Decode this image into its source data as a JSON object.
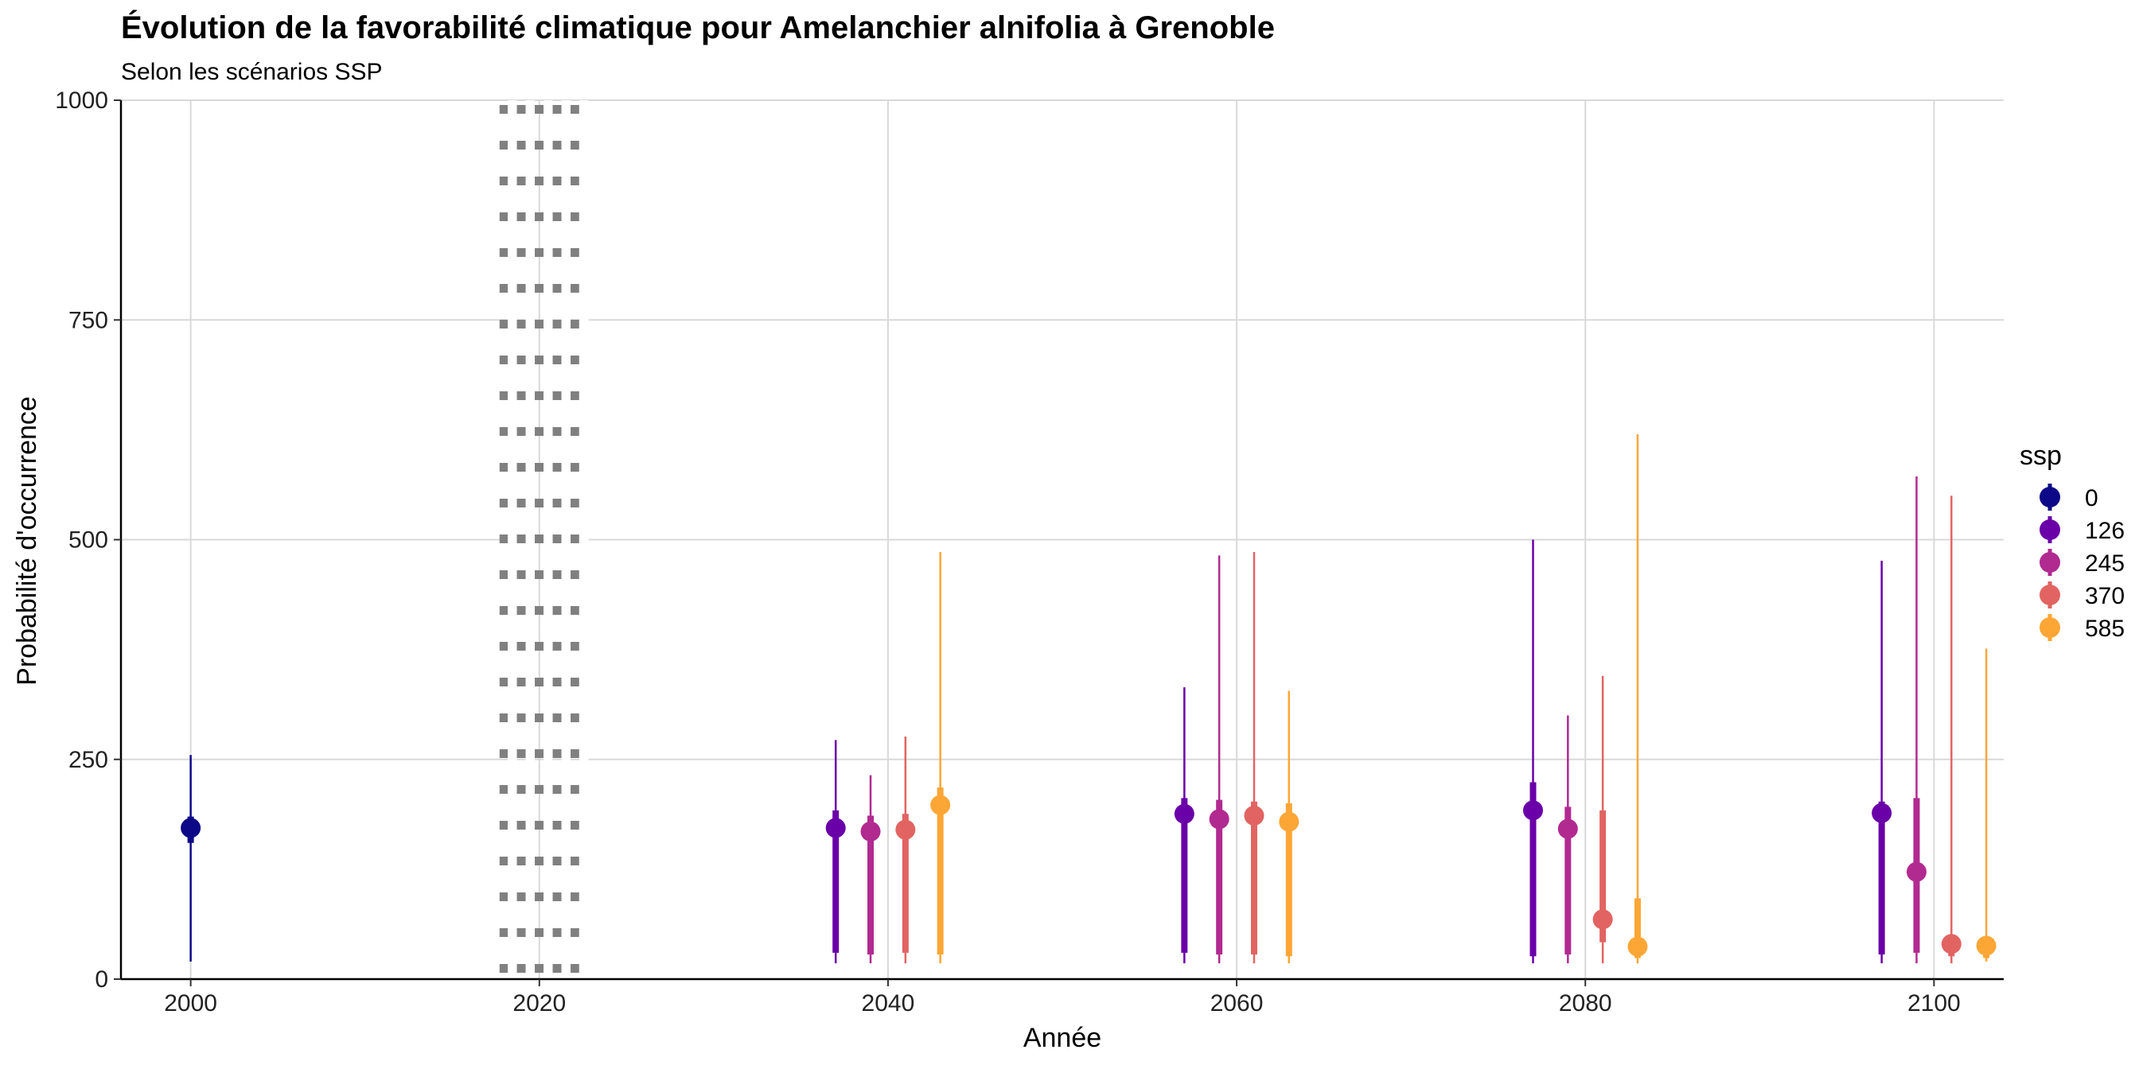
{
  "chart_data": {
    "type": "pointrange",
    "title": "Évolution de la favorabilité climatique pour Amelanchier alnifolia à Grenoble",
    "subtitle": "Selon les scénarios SSP",
    "xlabel": "Année",
    "ylabel": "Probabilité d'occurrence",
    "xlim": [
      1996,
      2104
    ],
    "ylim": [
      0,
      1000
    ],
    "x_ticks": [
      2000,
      2020,
      2040,
      2060,
      2080,
      2100
    ],
    "x_tick_labels": [
      "2000",
      "2020",
      "2040",
      "2060",
      "2080",
      "2100"
    ],
    "y_ticks": [
      0,
      250,
      500,
      750,
      1000
    ],
    "y_tick_labels": [
      "0",
      "250",
      "500",
      "750",
      "1000"
    ],
    "reference_line": {
      "x": 2020,
      "style": "dotted",
      "color": "#808080"
    },
    "legend": {
      "title": "ssp",
      "entries": [
        {
          "label": "0",
          "color": "#0D0887"
        },
        {
          "label": "126",
          "color": "#6A00A8"
        },
        {
          "label": "245",
          "color": "#B12A90"
        },
        {
          "label": "370",
          "color": "#E16462"
        },
        {
          "label": "585",
          "color": "#FCA636"
        }
      ]
    },
    "points": [
      {
        "ssp": "0",
        "x": 2000,
        "y": 172,
        "inner": [
          155,
          185
        ],
        "outer": [
          20,
          255
        ]
      },
      {
        "ssp": "126",
        "x": 2037,
        "y": 172,
        "inner": [
          30,
          192
        ],
        "outer": [
          18,
          272
        ]
      },
      {
        "ssp": "245",
        "x": 2039,
        "y": 168,
        "inner": [
          28,
          186
        ],
        "outer": [
          18,
          232
        ]
      },
      {
        "ssp": "370",
        "x": 2041,
        "y": 170,
        "inner": [
          30,
          188
        ],
        "outer": [
          18,
          276
        ]
      },
      {
        "ssp": "585",
        "x": 2043,
        "y": 198,
        "inner": [
          28,
          218
        ],
        "outer": [
          18,
          486
        ]
      },
      {
        "ssp": "126",
        "x": 2057,
        "y": 188,
        "inner": [
          30,
          206
        ],
        "outer": [
          18,
          332
        ]
      },
      {
        "ssp": "245",
        "x": 2059,
        "y": 182,
        "inner": [
          28,
          204
        ],
        "outer": [
          18,
          482
        ]
      },
      {
        "ssp": "370",
        "x": 2061,
        "y": 186,
        "inner": [
          28,
          202
        ],
        "outer": [
          18,
          486
        ]
      },
      {
        "ssp": "585",
        "x": 2063,
        "y": 179,
        "inner": [
          26,
          200
        ],
        "outer": [
          18,
          328
        ]
      },
      {
        "ssp": "126",
        "x": 2077,
        "y": 192,
        "inner": [
          26,
          224
        ],
        "outer": [
          18,
          500
        ]
      },
      {
        "ssp": "245",
        "x": 2079,
        "y": 171,
        "inner": [
          28,
          196
        ],
        "outer": [
          18,
          300
        ]
      },
      {
        "ssp": "370",
        "x": 2081,
        "y": 68,
        "inner": [
          42,
          192
        ],
        "outer": [
          18,
          345
        ]
      },
      {
        "ssp": "585",
        "x": 2083,
        "y": 37,
        "inner": [
          24,
          92
        ],
        "outer": [
          18,
          620
        ]
      },
      {
        "ssp": "126",
        "x": 2097,
        "y": 189,
        "inner": [
          28,
          202
        ],
        "outer": [
          18,
          476
        ]
      },
      {
        "ssp": "245",
        "x": 2099,
        "y": 122,
        "inner": [
          30,
          206
        ],
        "outer": [
          18,
          572
        ]
      },
      {
        "ssp": "370",
        "x": 2101,
        "y": 40,
        "inner": [
          26,
          46
        ],
        "outer": [
          18,
          550
        ]
      },
      {
        "ssp": "585",
        "x": 2103,
        "y": 38,
        "inner": [
          24,
          48
        ],
        "outer": [
          20,
          376
        ]
      }
    ]
  }
}
